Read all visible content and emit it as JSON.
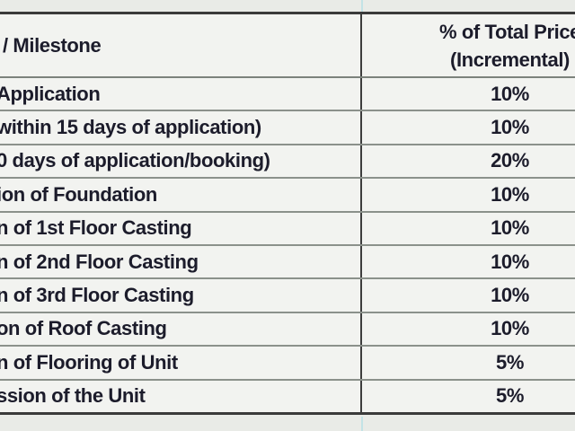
{
  "table": {
    "header": {
      "milestone_col": "/ Milestone",
      "percent_col_line1": "% of Total Price",
      "percent_col_line2": "(Incremental)"
    },
    "rows": [
      {
        "milestone": "Application",
        "percent": "10%"
      },
      {
        "milestone": "within 15 days of application)",
        "percent": "10%"
      },
      {
        "milestone": "0 days of application/booking)",
        "percent": "20%"
      },
      {
        "milestone": "ion of Foundation",
        "percent": "10%"
      },
      {
        "milestone": "n of 1st Floor Casting",
        "percent": "10%"
      },
      {
        "milestone": "n of 2nd Floor Casting",
        "percent": "10%"
      },
      {
        "milestone": "n of 3rd Floor Casting",
        "percent": "10%"
      },
      {
        "milestone": "on of Roof Casting",
        "percent": "10%"
      },
      {
        "milestone": "n of Flooring of Unit",
        "percent": "5%"
      },
      {
        "milestone": "ssion of the Unit",
        "percent": "5%"
      }
    ],
    "colors": {
      "outer_border": "#3a3a3a",
      "column_divider": "#3d3d3d",
      "row_gridline": "#8b918b",
      "cell_background": "#f2f3f0",
      "page_background": "#e9ebe7",
      "text": "#1c1c2b",
      "sheet_gridline_cyan": "#c3e3e6"
    }
  }
}
